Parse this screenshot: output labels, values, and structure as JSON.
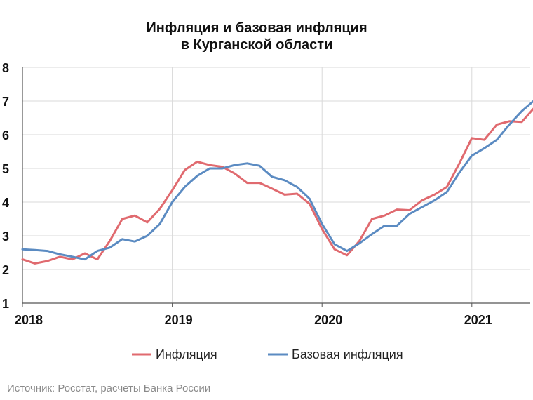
{
  "chart_data": {
    "type": "line",
    "title": [
      "Инфляция и базовая инфляция",
      "в  Курганской области"
    ],
    "xlabel": "",
    "ylabel": "",
    "ylim": [
      1,
      8
    ],
    "yticks": [
      "1",
      "2",
      "3",
      "4",
      "5",
      "6",
      "7",
      "8"
    ],
    "x_tick_labels": [
      "2018",
      "2019",
      "2020",
      "2021"
    ],
    "x_start": "2018-01",
    "x_end": "2021-05",
    "grid": true,
    "legend_position": "bottom",
    "series": [
      {
        "name": "Инфляция",
        "color": "#e06a6f",
        "values": [
          2.3,
          2.18,
          2.25,
          2.38,
          2.3,
          2.48,
          2.3,
          2.85,
          3.5,
          3.6,
          3.4,
          3.8,
          4.35,
          4.95,
          5.2,
          5.1,
          5.05,
          4.85,
          4.57,
          4.57,
          4.4,
          4.22,
          4.25,
          3.95,
          3.2,
          2.6,
          2.42,
          2.85,
          3.5,
          3.6,
          3.78,
          3.76,
          4.05,
          4.22,
          4.45,
          5.15,
          5.9,
          5.85,
          6.3,
          6.4,
          6.38,
          6.8
        ]
      },
      {
        "name": "Базовая инфляция",
        "color": "#5b8bc2",
        "values": [
          2.6,
          2.58,
          2.55,
          2.45,
          2.38,
          2.3,
          2.55,
          2.65,
          2.9,
          2.83,
          3.0,
          3.35,
          4.0,
          4.45,
          4.78,
          5.0,
          5.0,
          5.1,
          5.15,
          5.08,
          4.75,
          4.65,
          4.45,
          4.1,
          3.35,
          2.75,
          2.55,
          2.78,
          3.05,
          3.3,
          3.3,
          3.65,
          3.85,
          4.05,
          4.3,
          4.88,
          5.38,
          5.6,
          5.85,
          6.3,
          6.7,
          7.02
        ]
      }
    ]
  },
  "source": "Источник: Росстат, расчеты Банка России"
}
